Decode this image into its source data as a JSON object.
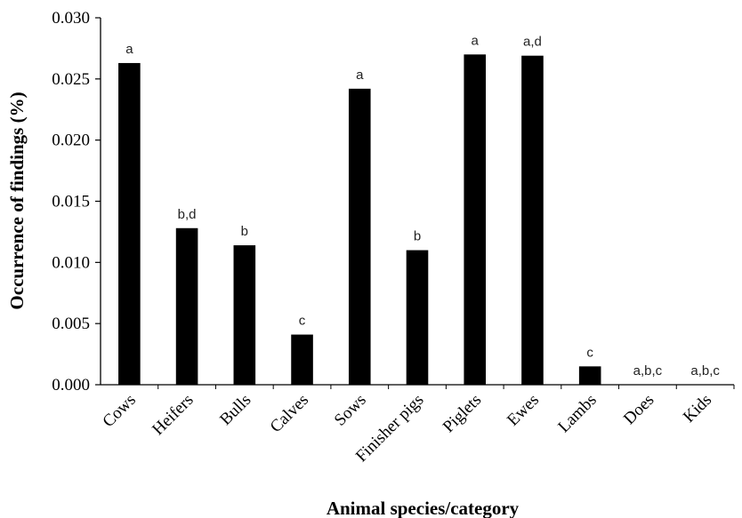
{
  "chart_data": {
    "type": "bar",
    "categories": [
      "Cows",
      "Heifers",
      "Bulls",
      "Calves",
      "Sows",
      "Finisher pigs",
      "Piglets",
      "Ewes",
      "Lambs",
      "Does",
      "Kids"
    ],
    "values": [
      0.0263,
      0.0128,
      0.0114,
      0.0041,
      0.0242,
      0.011,
      0.027,
      0.0269,
      0.0015,
      0.0,
      0.0
    ],
    "annotations": [
      "a",
      "b,d",
      "b",
      "c",
      "a",
      "b",
      "a",
      "a,d",
      "c",
      "a,b,c",
      "a,b,c"
    ],
    "title": "",
    "xlabel": "Animal species/category",
    "ylabel": "Occurrence of findings (%)",
    "ylim": [
      0,
      0.03
    ],
    "yticks": [
      "0.000",
      "0.005",
      "0.010",
      "0.015",
      "0.020",
      "0.025",
      "0.030"
    ],
    "grid": false,
    "legend": "none",
    "bar_color": "#000000"
  }
}
